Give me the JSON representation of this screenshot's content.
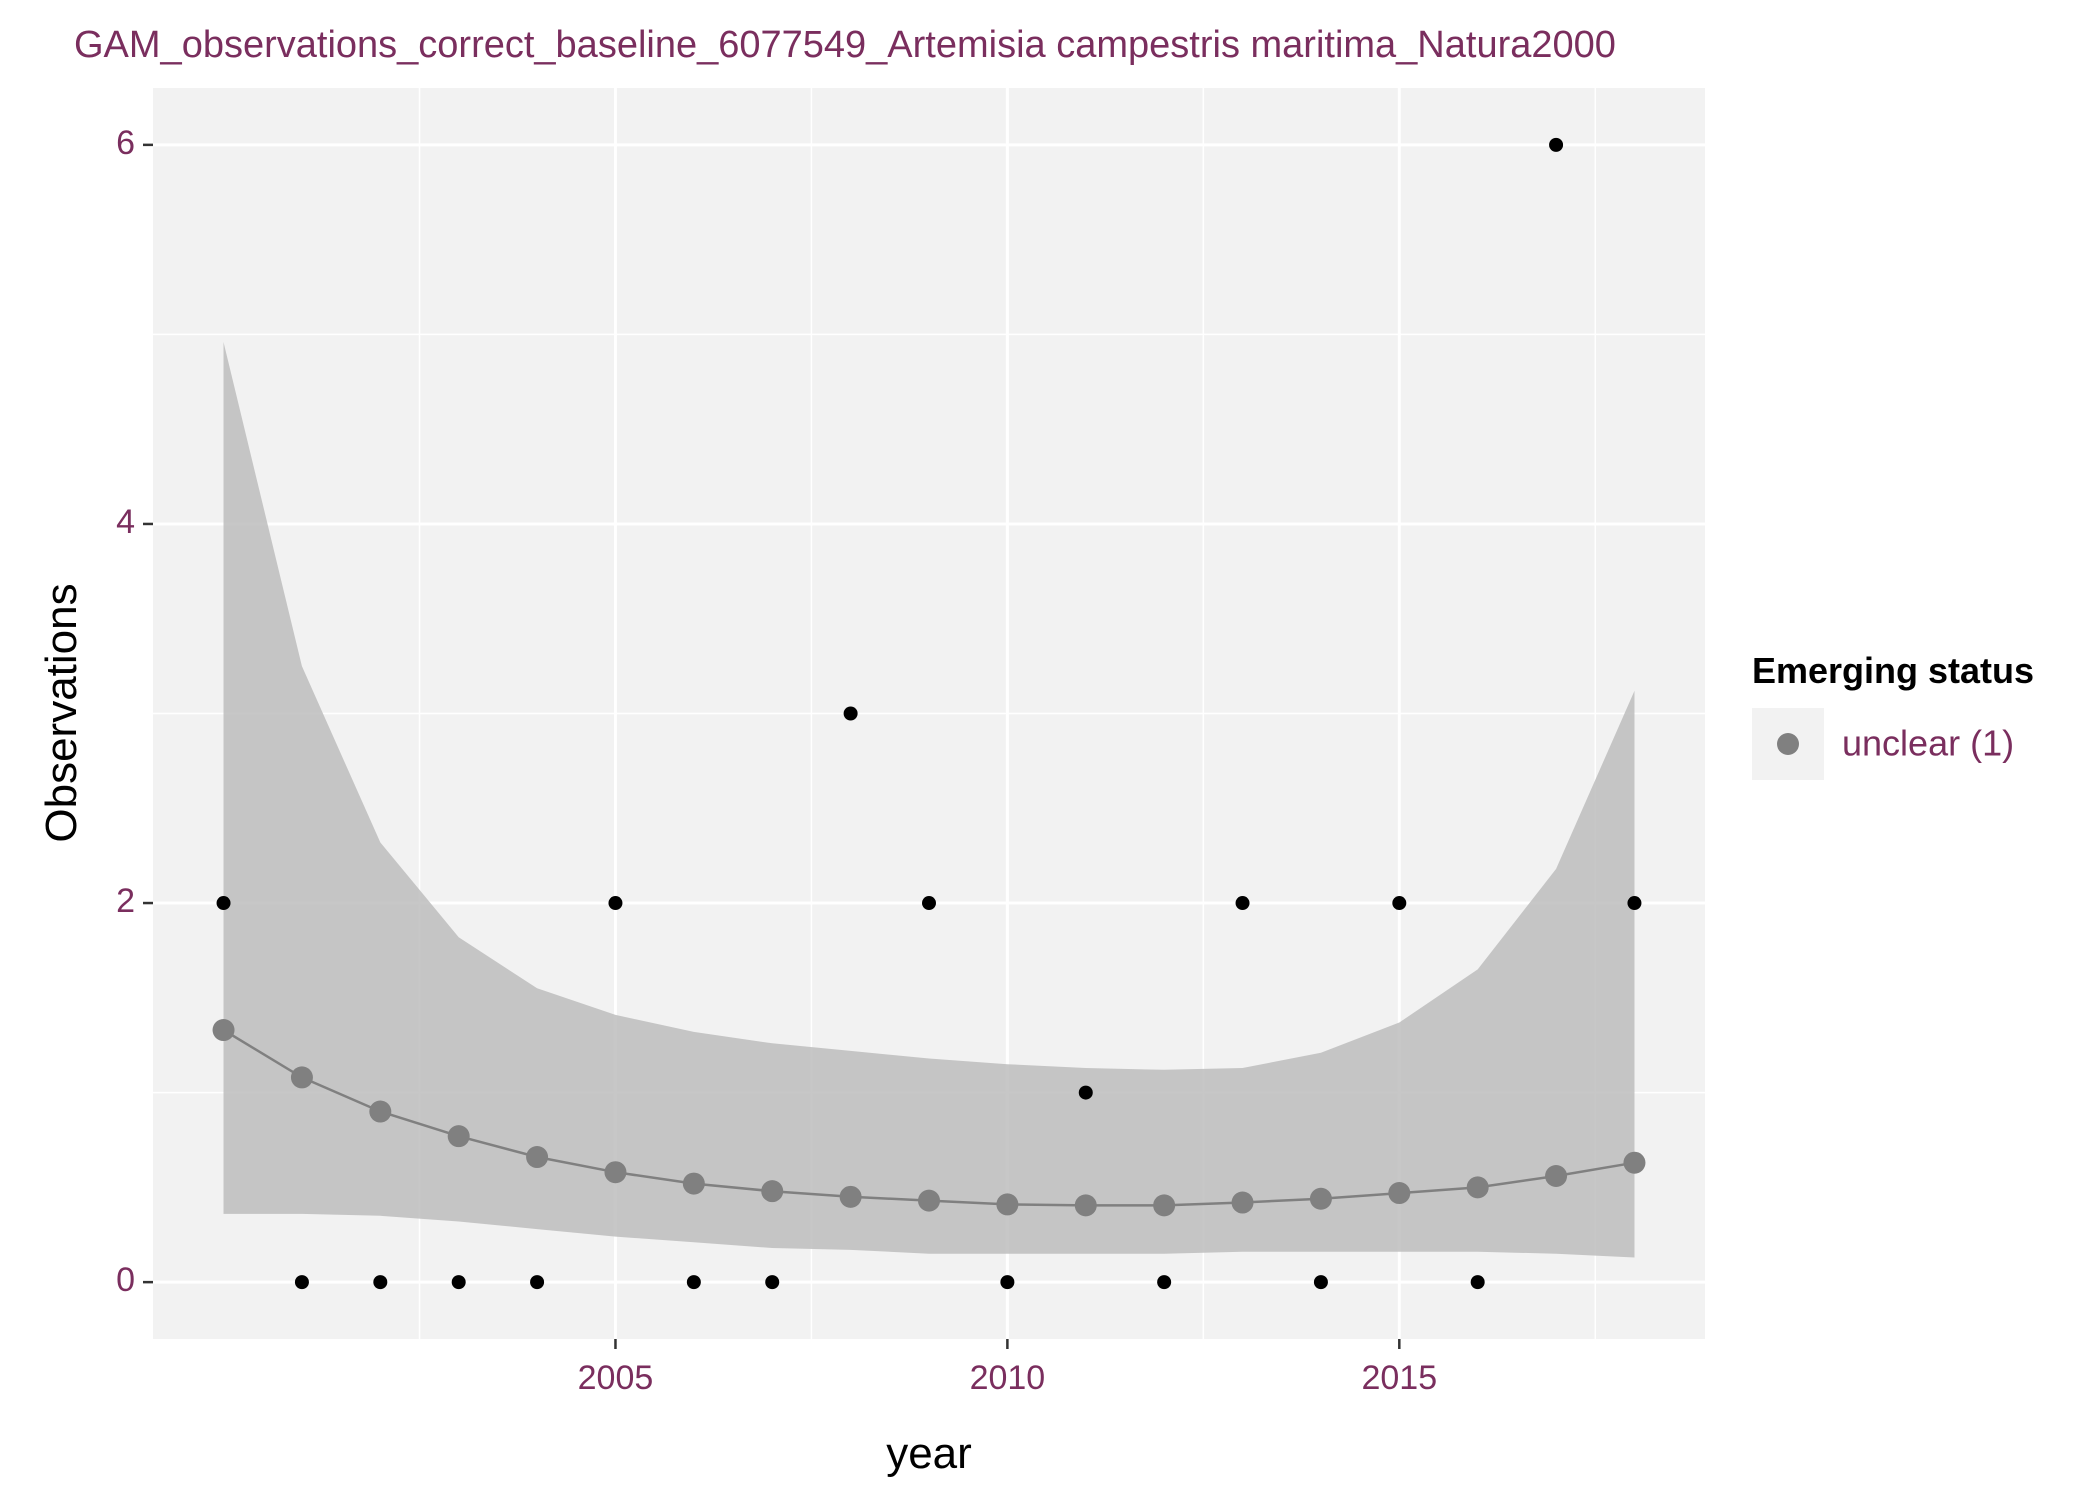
{
  "chart_data": {
    "type": "scatter",
    "title": "GAM_observations_correct_baseline_6077549_Artemisia campestris maritima_Natura2000",
    "xlabel": "year",
    "ylabel": "Observations",
    "xlim": [
      1999.1,
      2018.9
    ],
    "ylim": [
      -0.3,
      6.3
    ],
    "x_ticks": [
      2005,
      2010,
      2015
    ],
    "x_tick_labels": [
      "2005",
      "2010",
      "2015"
    ],
    "y_ticks": [
      0,
      2,
      4,
      6
    ],
    "y_tick_labels": [
      "0",
      "2",
      "4",
      "6"
    ],
    "grid": true,
    "legend": {
      "title": "Emerging status",
      "placement": "right",
      "entries": [
        {
          "label": "unclear (1)",
          "color": "#808080"
        }
      ]
    },
    "series": [
      {
        "kind": "observed",
        "color": "#000000",
        "x": [
          2000,
          2001,
          2002,
          2003,
          2004,
          2005,
          2006,
          2007,
          2008,
          2009,
          2010,
          2011,
          2012,
          2013,
          2014,
          2015,
          2016,
          2017,
          2018
        ],
        "y": [
          2,
          0,
          0,
          0,
          0,
          2,
          0,
          0,
          3,
          2,
          0,
          1,
          0,
          2,
          0,
          2,
          0,
          6,
          2
        ]
      },
      {
        "kind": "fitted",
        "name": "unclear (1)",
        "color": "#808080",
        "x": [
          2000,
          2001,
          2002,
          2003,
          2004,
          2005,
          2006,
          2007,
          2008,
          2009,
          2010,
          2011,
          2012,
          2013,
          2014,
          2015,
          2016,
          2017,
          2018
        ],
        "y": [
          1.33,
          1.08,
          0.9,
          0.77,
          0.66,
          0.58,
          0.52,
          0.48,
          0.45,
          0.43,
          0.41,
          0.405,
          0.405,
          0.42,
          0.44,
          0.47,
          0.5,
          0.56,
          0.63
        ],
        "lower": [
          0.36,
          0.36,
          0.35,
          0.32,
          0.28,
          0.24,
          0.21,
          0.18,
          0.17,
          0.15,
          0.15,
          0.15,
          0.15,
          0.16,
          0.16,
          0.16,
          0.16,
          0.15,
          0.13
        ],
        "upper": [
          4.96,
          3.25,
          2.32,
          1.82,
          1.55,
          1.41,
          1.32,
          1.26,
          1.22,
          1.18,
          1.15,
          1.13,
          1.12,
          1.13,
          1.21,
          1.37,
          1.65,
          2.18,
          3.12
        ]
      }
    ],
    "colors": {
      "panel": "#f2f2f2",
      "grid": "#ffffff",
      "ribbon": "#bdbdbd",
      "text": "#7a2e5e"
    }
  }
}
